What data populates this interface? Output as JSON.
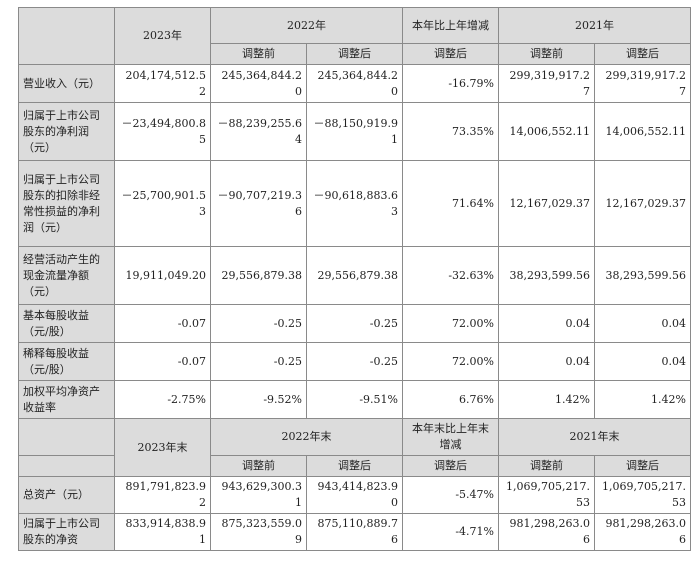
{
  "section1": {
    "headers": {
      "corner": "",
      "y2023": "2023年",
      "y2022": "2022年",
      "change": "本年比上年增减",
      "y2021": "2021年",
      "adj_before": "调整前",
      "adj_after": "调整后",
      "change_sub": "调整后"
    },
    "rows": [
      {
        "label": "营业收入（元）",
        "v2023": "204,174,512.52",
        "v2022_before": "245,364,844.20",
        "v2022_after": "245,364,844.20",
        "change": "-16.79%",
        "v2021_before": "299,319,917.27",
        "v2021_after": "299,319,917.27"
      },
      {
        "label": "归属于上市公司股东的净利润（元）",
        "v2023": "－23,494,800.85",
        "v2022_before": "－88,239,255.64",
        "v2022_after": "－88,150,919.91",
        "change": "73.35%",
        "v2021_before": "14,006,552.11",
        "v2021_after": "14,006,552.11"
      },
      {
        "label": "归属于上市公司股东的扣除非经常性损益的净利润（元）",
        "v2023": "－25,700,901.53",
        "v2022_before": "－90,707,219.36",
        "v2022_after": "－90,618,883.63",
        "change": "71.64%",
        "v2021_before": "12,167,029.37",
        "v2021_after": "12,167,029.37"
      },
      {
        "label": "经营活动产生的现金流量净额（元）",
        "v2023": "19,911,049.20",
        "v2022_before": "29,556,879.38",
        "v2022_after": "29,556,879.38",
        "change": "-32.63%",
        "v2021_before": "38,293,599.56",
        "v2021_after": "38,293,599.56"
      },
      {
        "label": "基本每股收益（元/股）",
        "v2023": "-0.07",
        "v2022_before": "-0.25",
        "v2022_after": "-0.25",
        "change": "72.00%",
        "v2021_before": "0.04",
        "v2021_after": "0.04"
      },
      {
        "label": "稀释每股收益（元/股）",
        "v2023": "-0.07",
        "v2022_before": "-0.25",
        "v2022_after": "-0.25",
        "change": "72.00%",
        "v2021_before": "0.04",
        "v2021_after": "0.04"
      },
      {
        "label": "加权平均净资产收益率",
        "v2023": "-2.75%",
        "v2022_before": "-9.52%",
        "v2022_after": "-9.51%",
        "change": "6.76%",
        "v2021_before": "1.42%",
        "v2021_after": "1.42%"
      }
    ]
  },
  "section2": {
    "headers": {
      "y2023": "2023年末",
      "y2022": "2022年末",
      "change": "本年末比上年末增减",
      "y2021": "2021年末",
      "adj_before": "调整前",
      "adj_after": "调整后",
      "change_sub": "调整后"
    },
    "rows": [
      {
        "label": "总资产（元）",
        "v2023": "891,791,823.92",
        "v2022_before": "943,629,300.31",
        "v2022_after": "943,414,823.90",
        "change": "-5.47%",
        "v2021_before": "1,069,705,217.53",
        "v2021_after": "1,069,705,217.53"
      },
      {
        "label": "归属于上市公司股东的净资",
        "v2023": "833,914,838.91",
        "v2022_before": "875,323,559.09",
        "v2022_after": "875,110,889.76",
        "change": "-4.71%",
        "v2021_before": "981,298,263.06",
        "v2021_after": "981,298,263.06"
      }
    ]
  }
}
